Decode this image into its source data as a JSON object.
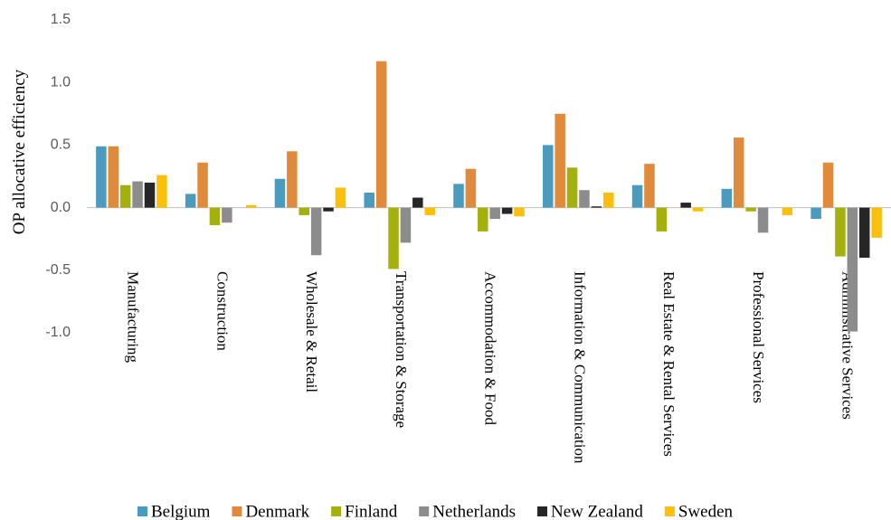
{
  "chart_data": {
    "type": "bar",
    "y_label": "OP allocative efficiency",
    "categories": [
      "Manufacturing",
      "Construction",
      "Wholesale & Retail",
      "Transportation & Storage",
      "Accommodation & Food",
      "Information & Communication",
      "Real Estate & Rental Services",
      "Professional Services",
      "Administrative Services"
    ],
    "series": [
      {
        "name": "Belgium",
        "color": "#4a9bbd",
        "values": [
          0.49,
          0.11,
          0.23,
          0.12,
          0.19,
          0.5,
          0.18,
          0.15,
          -0.09
        ]
      },
      {
        "name": "Denmark",
        "color": "#e08a3c",
        "values": [
          0.49,
          0.36,
          0.45,
          1.17,
          0.31,
          0.75,
          0.35,
          0.56,
          0.36
        ]
      },
      {
        "name": "Finland",
        "color": "#a4b00c",
        "values": [
          0.18,
          -0.14,
          -0.06,
          -0.49,
          -0.19,
          0.32,
          -0.19,
          -0.03,
          -0.39
        ]
      },
      {
        "name": "Netherlands",
        "color": "#8c8c8c",
        "values": [
          0.21,
          -0.12,
          -0.38,
          -0.28,
          -0.09,
          0.14,
          null,
          -0.2,
          -0.99
        ]
      },
      {
        "name": "New Zealand",
        "color": "#262626",
        "values": [
          0.2,
          null,
          -0.03,
          0.08,
          -0.05,
          0.01,
          0.04,
          null,
          -0.4
        ]
      },
      {
        "name": "Sweden",
        "color": "#fcc00c",
        "values": [
          0.26,
          0.02,
          0.16,
          -0.06,
          -0.07,
          0.12,
          -0.03,
          -0.06,
          -0.24
        ]
      }
    ],
    "ylim": [
      -1.0,
      1.5
    ],
    "yticks": [
      {
        "value": -1,
        "label": "-1.0"
      },
      -0.5,
      {
        "value": 0,
        "label": "0.0"
      },
      0.5,
      {
        "value": 1,
        "label": "1.0"
      },
      1.5
    ],
    "grid": false
  }
}
